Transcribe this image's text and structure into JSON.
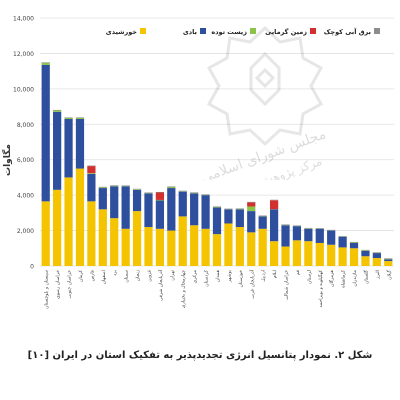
{
  "caption": "شکل ۲. نمودار پتانسیل انرژی تجدیدپذیر به تفکیک استان در ایران [۱۰]",
  "watermark": {
    "line1": "مجلس شورای اسلامی",
    "line2": "مرکز پژوهش ها"
  },
  "colors": {
    "solar": "#f5c400",
    "wind": "#2e4f9e",
    "biomass": "#8bc34a",
    "geothermal": "#d32f2f",
    "small_hydro": "#8c8c8c",
    "grid": "#e0e0e0",
    "axis_text": "#444444"
  },
  "chart_data": {
    "type": "bar",
    "stacked": true,
    "ylabel": "مگاوات",
    "ylim": [
      0,
      14000
    ],
    "yticks": [
      "0",
      "2,000",
      "4,000",
      "6,000",
      "8,000",
      "10,000",
      "12,000",
      "14,000"
    ],
    "legend_position": "top",
    "grid": true,
    "legend": [
      {
        "key": "small_hydro",
        "label": "برق آبی کوچک"
      },
      {
        "key": "geothermal",
        "label": "زمین گرمایی"
      },
      {
        "key": "biomass",
        "label": "زیست توده"
      },
      {
        "key": "wind",
        "label": "بادی"
      },
      {
        "key": "solar",
        "label": "خورشیدی"
      }
    ],
    "categories": [
      "سیستان و بلوچستان",
      "خراسان رضوی",
      "خراسان جنوبی",
      "کرمان",
      "فارس",
      "اصفهان",
      "یزد",
      "سمنان",
      "زنجان",
      "قزوین",
      "آذربایجان شرقی",
      "تهران",
      "چهارمحال و بختیاری",
      "مرکزی",
      "کردستان",
      "همدان",
      "بوشهر",
      "خوزستان",
      "آذربایجان غربی",
      "اردبیل",
      "ایلام",
      "خراسان شمالی",
      "قم",
      "لرستان",
      "کهگیلویه و بویراحمد",
      "هرمزگان",
      "کرمانشاه",
      "مازندران",
      "گلستان",
      "البرز",
      "گیلان"
    ],
    "series": [
      {
        "key": "solar",
        "name": "خورشیدی",
        "values": [
          3650,
          4300,
          5000,
          5500,
          3650,
          3200,
          2700,
          2100,
          3100,
          2200,
          2100,
          2000,
          2800,
          2300,
          2100,
          1800,
          2400,
          2200,
          1900,
          2100,
          1400,
          1100,
          1450,
          1400,
          1300,
          1200,
          1050,
          1000,
          550,
          450,
          280
        ]
      },
      {
        "key": "wind",
        "name": "بادی",
        "values": [
          7700,
          4400,
          3300,
          2800,
          1550,
          1200,
          1800,
          2400,
          1200,
          1900,
          1600,
          2400,
          1400,
          1800,
          1900,
          1500,
          800,
          1000,
          1200,
          700,
          1800,
          1200,
          800,
          700,
          800,
          800,
          600,
          300,
          300,
          280,
          100
        ]
      },
      {
        "key": "biomass",
        "name": "زیست توده",
        "values": [
          120,
          80,
          60,
          60,
          40,
          40,
          30,
          20,
          30,
          20,
          30,
          60,
          20,
          30,
          20,
          30,
          10,
          20,
          260,
          20,
          10,
          20,
          10,
          20,
          10,
          10,
          10,
          30,
          30,
          20,
          30
        ]
      },
      {
        "key": "geothermal",
        "name": "زمین گرمایی",
        "values": [
          0,
          0,
          0,
          0,
          400,
          0,
          0,
          0,
          0,
          0,
          420,
          0,
          0,
          0,
          0,
          0,
          0,
          0,
          230,
          0,
          500,
          0,
          0,
          0,
          0,
          0,
          0,
          0,
          0,
          0,
          0
        ]
      },
      {
        "key": "small_hydro",
        "name": "برق آبی کوچک",
        "values": [
          30,
          30,
          30,
          30,
          30,
          30,
          30,
          30,
          30,
          30,
          30,
          30,
          30,
          30,
          30,
          30,
          30,
          30,
          30,
          30,
          30,
          30,
          30,
          30,
          30,
          30,
          30,
          30,
          30,
          30,
          30
        ]
      }
    ]
  }
}
